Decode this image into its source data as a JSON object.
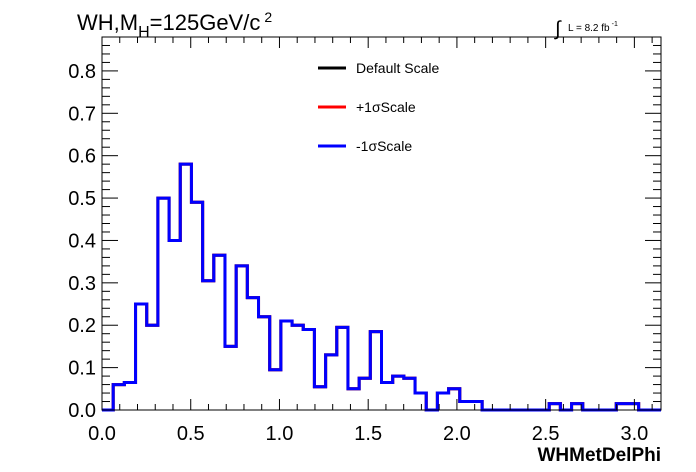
{
  "chart_data": {
    "type": "histogram",
    "title": "WH,M",
    "title_subscript": "H",
    "title_suffix": "=125GeV/c",
    "title_superscript": "2",
    "lumi": {
      "integral_sign": "∫",
      "text": "L = 8.2 fb",
      "superscript": "-1"
    },
    "xlabel": "WHMetDelPhi",
    "ylabel": "",
    "xlim": [
      0,
      3.15
    ],
    "ylim": [
      0,
      0.88
    ],
    "xticks": [
      "0.0",
      "0.5",
      "1.0",
      "1.5",
      "2.0",
      "2.5",
      "3.0"
    ],
    "yticks": [
      "0.0",
      "0.1",
      "0.2",
      "0.3",
      "0.4",
      "0.5",
      "0.6",
      "0.7",
      "0.8"
    ],
    "grid": false,
    "legend_position": "top-right",
    "bin_edges": [
      0,
      0.063,
      0.126,
      0.189,
      0.252,
      0.315,
      0.378,
      0.441,
      0.504,
      0.567,
      0.63,
      0.693,
      0.756,
      0.819,
      0.882,
      0.945,
      1.008,
      1.071,
      1.134,
      1.197,
      1.26,
      1.323,
      1.386,
      1.449,
      1.512,
      1.575,
      1.638,
      1.701,
      1.764,
      1.827,
      1.89,
      1.953,
      2.016,
      2.079,
      2.142,
      2.205,
      2.268,
      2.331,
      2.394,
      2.457,
      2.52,
      2.583,
      2.646,
      2.709,
      2.772,
      2.835,
      2.898,
      2.961,
      3.024,
      3.087,
      3.15
    ],
    "series": [
      {
        "name": "Default Scale",
        "color": "#000000",
        "values": [
          0.0,
          0.06,
          0.065,
          0.25,
          0.2,
          0.5,
          0.4,
          0.58,
          0.49,
          0.305,
          0.365,
          0.15,
          0.34,
          0.265,
          0.22,
          0.095,
          0.21,
          0.2,
          0.19,
          0.055,
          0.13,
          0.195,
          0.05,
          0.075,
          0.185,
          0.065,
          0.08,
          0.075,
          0.04,
          0.0,
          0.04,
          0.05,
          0.02,
          0.02,
          0.0,
          0.0,
          0.0,
          0.0,
          0.0,
          0.0,
          0.015,
          0.0,
          0.015,
          0.0,
          0.0,
          0.0,
          0.015,
          0.015,
          0.0,
          0.0
        ]
      },
      {
        "name": "+1σScale",
        "color": "#ff0000",
        "values": [
          0.0,
          0.06,
          0.065,
          0.25,
          0.2,
          0.5,
          0.4,
          0.58,
          0.49,
          0.305,
          0.365,
          0.15,
          0.34,
          0.265,
          0.22,
          0.095,
          0.21,
          0.2,
          0.19,
          0.055,
          0.13,
          0.195,
          0.05,
          0.075,
          0.185,
          0.065,
          0.08,
          0.075,
          0.04,
          0.0,
          0.04,
          0.05,
          0.02,
          0.02,
          0.0,
          0.0,
          0.0,
          0.0,
          0.0,
          0.0,
          0.015,
          0.0,
          0.015,
          0.0,
          0.0,
          0.0,
          0.015,
          0.015,
          0.0,
          0.0
        ]
      },
      {
        "name": "-1σScale",
        "color": "#0000ff",
        "values": [
          0.0,
          0.06,
          0.065,
          0.25,
          0.2,
          0.5,
          0.4,
          0.58,
          0.49,
          0.305,
          0.365,
          0.15,
          0.34,
          0.265,
          0.22,
          0.095,
          0.21,
          0.2,
          0.19,
          0.055,
          0.13,
          0.195,
          0.05,
          0.075,
          0.185,
          0.065,
          0.08,
          0.075,
          0.04,
          0.0,
          0.04,
          0.05,
          0.02,
          0.02,
          0.0,
          0.0,
          0.0,
          0.0,
          0.0,
          0.0,
          0.015,
          0.0,
          0.015,
          0.0,
          0.0,
          0.0,
          0.015,
          0.015,
          0.0,
          0.0
        ]
      }
    ]
  }
}
